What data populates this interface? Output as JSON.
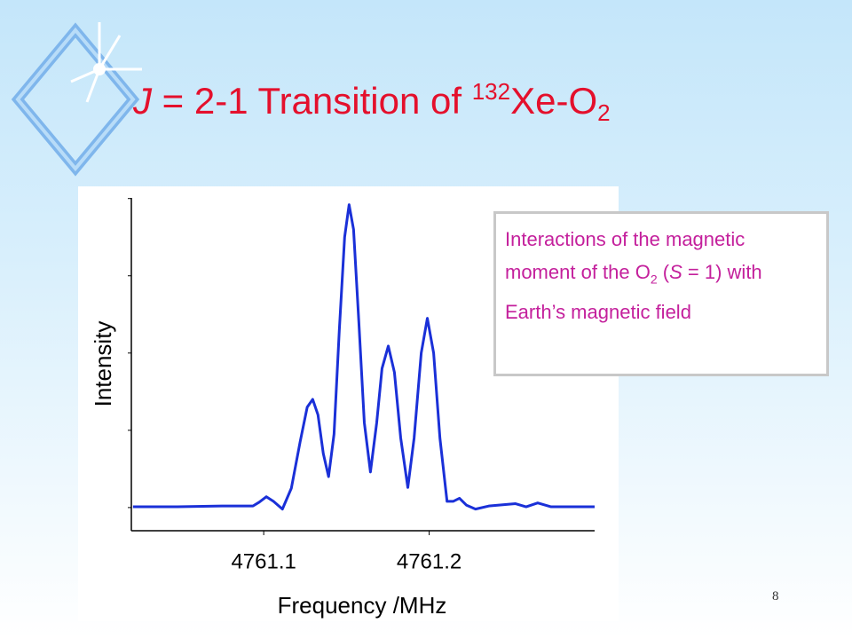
{
  "slide": {
    "title": [
      "J",
      " = 2-1 Transition of ",
      "132",
      "Xe-O",
      "2"
    ],
    "annotation": [
      "Interactions of the magnetic moment of the O",
      "2",
      " (",
      "S",
      " = 1) with Earth’s magnetic field"
    ],
    "page_number": "8"
  },
  "chart_data": {
    "type": "line",
    "x_label": "Frequency /MHz",
    "y_label": "Intensity",
    "color": "#1a30d8",
    "x": [
      4761.021,
      4761.0478,
      4761.0747,
      4761.0935,
      4761.0973,
      4761.1016,
      4761.1059,
      4761.1113,
      4761.1167,
      4761.122,
      4761.1263,
      4761.1296,
      4761.1328,
      4761.136,
      4761.1392,
      4761.1425,
      4761.1457,
      4761.1489,
      4761.1516,
      4761.1543,
      4761.1575,
      4761.1608,
      4761.1645,
      4761.1683,
      4761.1715,
      4761.1753,
      4761.179,
      4761.1828,
      4761.1871,
      4761.1909,
      4761.1952,
      4761.1989,
      4761.2027,
      4761.2065,
      4761.2108,
      4761.2145,
      4761.2183,
      4761.2226,
      4761.228,
      4761.236,
      4761.2522,
      4761.2586,
      4761.2656,
      4761.2737,
      4761.3
    ],
    "values": [
      0.01,
      0.01,
      0.02,
      0.02,
      0.07,
      0.14,
      0.08,
      -0.02,
      0.25,
      0.85,
      1.3,
      1.4,
      1.2,
      0.7,
      0.4,
      0.95,
      2.3,
      3.5,
      3.92,
      3.6,
      2.4,
      1.1,
      0.46,
      1.1,
      1.8,
      2.09,
      1.75,
      0.9,
      0.26,
      0.9,
      2.0,
      2.45,
      2.0,
      0.9,
      0.08,
      0.08,
      0.12,
      0.03,
      -0.02,
      0.02,
      0.05,
      0.01,
      0.06,
      0.01,
      0.01
    ],
    "xlim": [
      4761.02,
      4761.3
    ],
    "xticks": [
      4761.1,
      4761.2
    ],
    "ylim": [
      -0.3,
      4.1
    ],
    "ytick_marks": [
      0,
      1,
      2,
      3,
      4
    ]
  }
}
